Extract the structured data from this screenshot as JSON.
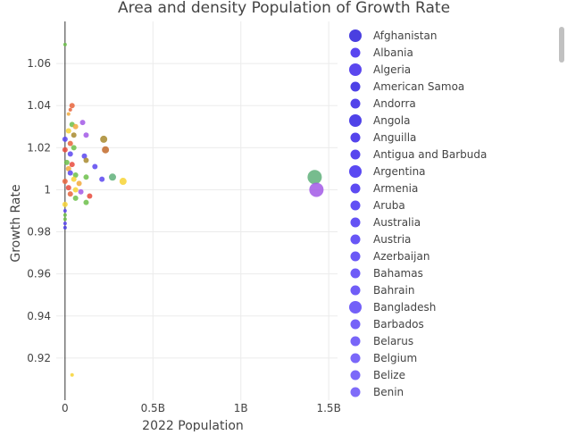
{
  "chart_data": {
    "type": "scatter",
    "title": "Area and density Population of Growth Rate",
    "xlabel": "2022 Population",
    "ylabel": "Growth Rate",
    "xlim": [
      -0.05,
      1.55
    ],
    "ylim": [
      0.9,
      1.08
    ],
    "x_ticks": [
      {
        "value": 0,
        "label": "0"
      },
      {
        "value": 0.5,
        "label": "0.5B"
      },
      {
        "value": 1.0,
        "label": "1B"
      },
      {
        "value": 1.5,
        "label": "1.5B"
      }
    ],
    "y_ticks": [
      {
        "value": 0.92,
        "label": "0.92"
      },
      {
        "value": 0.94,
        "label": "0.94"
      },
      {
        "value": 0.96,
        "label": "0.96"
      },
      {
        "value": 0.98,
        "label": "0.98"
      },
      {
        "value": 1.0,
        "label": "1"
      },
      {
        "value": 1.02,
        "label": "1.02"
      },
      {
        "value": 1.04,
        "label": "1.04"
      },
      {
        "value": 1.06,
        "label": "1.06"
      }
    ],
    "grid": true,
    "legend_position": "right",
    "legend": [
      {
        "name": "Afghanistan",
        "color": "#4a3fe0"
      },
      {
        "name": "Albania",
        "color": "#5a46f0"
      },
      {
        "name": "Algeria",
        "color": "#5b47ee"
      },
      {
        "name": "American Samoa",
        "color": "#4d41e6"
      },
      {
        "name": "Andorra",
        "color": "#5243ea"
      },
      {
        "name": "Angola",
        "color": "#4f42e8"
      },
      {
        "name": "Anguilla",
        "color": "#5443ec"
      },
      {
        "name": "Antigua and Barbuda",
        "color": "#5746ee"
      },
      {
        "name": "Argentina",
        "color": "#5a49f2"
      },
      {
        "name": "Armenia",
        "color": "#5d4bf2"
      },
      {
        "name": "Aruba",
        "color": "#6150f4"
      },
      {
        "name": "Australia",
        "color": "#6452f4"
      },
      {
        "name": "Austria",
        "color": "#6856f6"
      },
      {
        "name": "Azerbaijan",
        "color": "#6b58f6"
      },
      {
        "name": "Bahamas",
        "color": "#6e5bf7"
      },
      {
        "name": "Bahrain",
        "color": "#705df7"
      },
      {
        "name": "Bangladesh",
        "color": "#7360f8"
      },
      {
        "name": "Barbados",
        "color": "#7562f8"
      },
      {
        "name": "Belarus",
        "color": "#7865f8"
      },
      {
        "name": "Belgium",
        "color": "#7a67f9"
      },
      {
        "name": "Belize",
        "color": "#7c69f9"
      },
      {
        "name": "Benin",
        "color": "#7f6cf9"
      }
    ],
    "points": [
      {
        "x": 0.0,
        "y": 1.069,
        "size": 2,
        "color": "#6cc04a"
      },
      {
        "x": 0.04,
        "y": 1.04,
        "size": 3,
        "color": "#e8643c"
      },
      {
        "x": 0.03,
        "y": 1.038,
        "size": 2,
        "color": "#e8643c"
      },
      {
        "x": 0.02,
        "y": 1.036,
        "size": 2,
        "color": "#f2a93b"
      },
      {
        "x": 0.1,
        "y": 1.032,
        "size": 3,
        "color": "#a259e6"
      },
      {
        "x": 0.04,
        "y": 1.031,
        "size": 3,
        "color": "#6cc04a"
      },
      {
        "x": 0.06,
        "y": 1.03,
        "size": 3,
        "color": "#f2a93b"
      },
      {
        "x": 0.02,
        "y": 1.028,
        "size": 3,
        "color": "#f7d335"
      },
      {
        "x": 0.05,
        "y": 1.026,
        "size": 3,
        "color": "#a88a2e"
      },
      {
        "x": 0.12,
        "y": 1.026,
        "size": 3,
        "color": "#a259e6"
      },
      {
        "x": 0.22,
        "y": 1.024,
        "size": 4,
        "color": "#a88a2e"
      },
      {
        "x": 0.0,
        "y": 1.024,
        "size": 3,
        "color": "#5a46f0"
      },
      {
        "x": 0.03,
        "y": 1.022,
        "size": 3,
        "color": "#e8643c"
      },
      {
        "x": 0.05,
        "y": 1.02,
        "size": 3,
        "color": "#6cc04a"
      },
      {
        "x": 0.0,
        "y": 1.019,
        "size": 3,
        "color": "#e84a3c"
      },
      {
        "x": 0.23,
        "y": 1.019,
        "size": 4,
        "color": "#c26a2a"
      },
      {
        "x": 0.03,
        "y": 1.017,
        "size": 3,
        "color": "#5a46f0"
      },
      {
        "x": 0.11,
        "y": 1.016,
        "size": 3,
        "color": "#5a46f0"
      },
      {
        "x": 0.12,
        "y": 1.014,
        "size": 3,
        "color": "#a88a2e"
      },
      {
        "x": 0.01,
        "y": 1.013,
        "size": 3,
        "color": "#6cc04a"
      },
      {
        "x": 0.04,
        "y": 1.012,
        "size": 3,
        "color": "#e84a3c"
      },
      {
        "x": 0.17,
        "y": 1.011,
        "size": 3,
        "color": "#5a46f0"
      },
      {
        "x": 0.02,
        "y": 1.01,
        "size": 3,
        "color": "#f2a93b"
      },
      {
        "x": 0.03,
        "y": 1.008,
        "size": 3,
        "color": "#5a46f0"
      },
      {
        "x": 0.06,
        "y": 1.007,
        "size": 3,
        "color": "#6cc04a"
      },
      {
        "x": 0.12,
        "y": 1.006,
        "size": 3,
        "color": "#6cc04a"
      },
      {
        "x": 0.27,
        "y": 1.006,
        "size": 4,
        "color": "#5fb07a"
      },
      {
        "x": 0.05,
        "y": 1.005,
        "size": 3,
        "color": "#f7d335"
      },
      {
        "x": 0.21,
        "y": 1.005,
        "size": 3,
        "color": "#5a46f0"
      },
      {
        "x": 0.33,
        "y": 1.004,
        "size": 4,
        "color": "#f7d335"
      },
      {
        "x": 0.0,
        "y": 1.004,
        "size": 3,
        "color": "#e8643c"
      },
      {
        "x": 0.08,
        "y": 1.003,
        "size": 3,
        "color": "#f2a93b"
      },
      {
        "x": 0.02,
        "y": 1.001,
        "size": 3,
        "color": "#e84a3c"
      },
      {
        "x": 0.06,
        "y": 1.0,
        "size": 3,
        "color": "#f7d335"
      },
      {
        "x": 0.09,
        "y": 0.999,
        "size": 3,
        "color": "#a259e6"
      },
      {
        "x": 0.03,
        "y": 0.998,
        "size": 3,
        "color": "#e8643c"
      },
      {
        "x": 0.14,
        "y": 0.997,
        "size": 3,
        "color": "#e84a3c"
      },
      {
        "x": 0.06,
        "y": 0.996,
        "size": 3,
        "color": "#6cc04a"
      },
      {
        "x": 0.12,
        "y": 0.994,
        "size": 3,
        "color": "#6cc04a"
      },
      {
        "x": 0.0,
        "y": 0.993,
        "size": 3,
        "color": "#f7d335"
      },
      {
        "x": 0.0,
        "y": 0.99,
        "size": 2,
        "color": "#5a46f0"
      },
      {
        "x": 0.0,
        "y": 0.988,
        "size": 2,
        "color": "#6cc04a"
      },
      {
        "x": 0.0,
        "y": 0.986,
        "size": 2,
        "color": "#6cc04a"
      },
      {
        "x": 0.0,
        "y": 0.984,
        "size": 2,
        "color": "#5a46f0"
      },
      {
        "x": 0.0,
        "y": 0.982,
        "size": 2,
        "color": "#4d41e6"
      },
      {
        "x": 0.04,
        "y": 0.912,
        "size": 2,
        "color": "#f7d335"
      },
      {
        "x": 1.42,
        "y": 1.006,
        "size": 8,
        "color": "#5fb07a"
      },
      {
        "x": 1.43,
        "y": 1.0,
        "size": 8,
        "color": "#a259e6"
      }
    ]
  }
}
